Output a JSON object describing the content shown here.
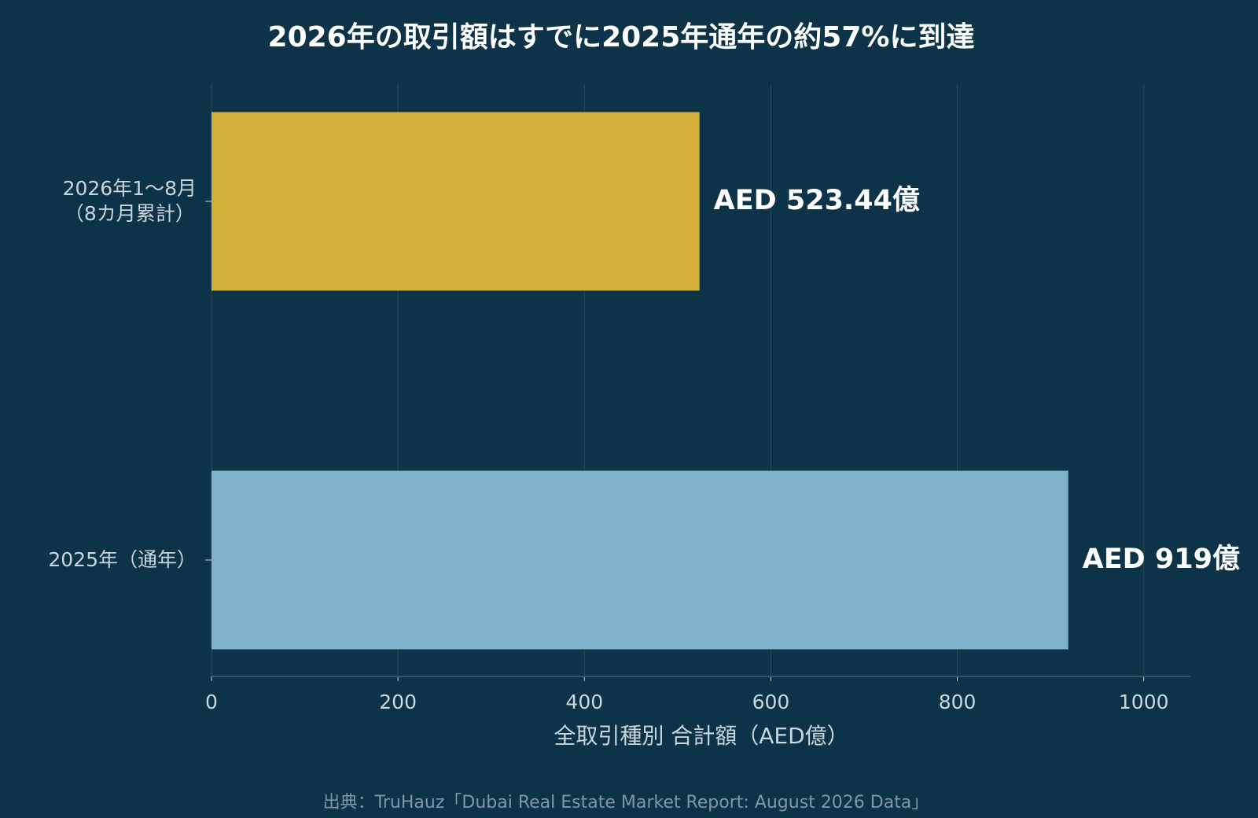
{
  "chart_data": {
    "type": "hbar",
    "title": "2026年の取引額はすでに2025年通年の約57%に到達",
    "categories": [
      "2026年1〜8月\n（8カ月累計）",
      "2025年（通年）"
    ],
    "values": [
      523.44,
      919
    ],
    "value_labels": [
      "AED 523.44億",
      "AED 919億"
    ],
    "colors": [
      "#d3af37",
      "#7fb3c9"
    ],
    "xlim": [
      0,
      1050
    ],
    "xticks": [
      0,
      200,
      400,
      600,
      800,
      1000
    ],
    "xlabel": "全取引種別 合計額（AED億）",
    "grid": true,
    "source": "出典：TruHauz「Dubai Real Estate Market Report: August 2026 Data」"
  }
}
